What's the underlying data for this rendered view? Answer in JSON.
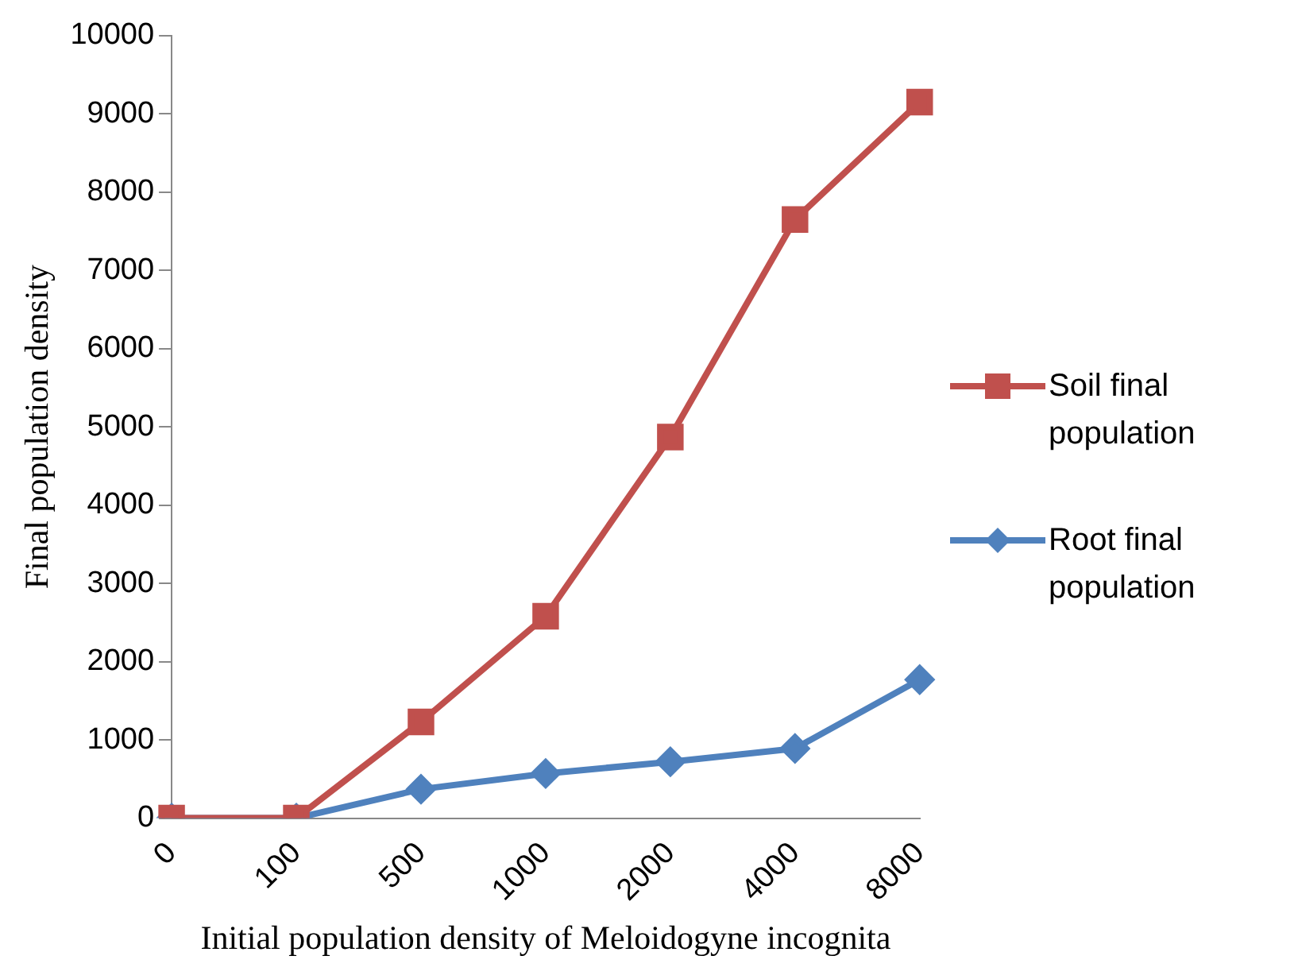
{
  "chart_data": {
    "type": "line",
    "xlabel": "Initial population density of Meloidogyne incognita",
    "ylabel": "Final population density",
    "categories": [
      "0",
      "100",
      "500",
      "1000",
      "2000",
      "4000",
      "8000"
    ],
    "series": [
      {
        "name": "Soil final population",
        "color": "#c0504d",
        "marker": "square",
        "values": [
          0,
          0,
          1230,
          2580,
          4870,
          7650,
          9150
        ]
      },
      {
        "name": "Root final population",
        "color": "#4f81bd",
        "marker": "diamond",
        "values": [
          0,
          0,
          370,
          570,
          720,
          890,
          1770
        ]
      }
    ],
    "ylim": [
      0,
      10000
    ],
    "yticks": [
      0,
      1000,
      2000,
      3000,
      4000,
      5000,
      6000,
      7000,
      8000,
      9000,
      10000
    ],
    "grid": false,
    "legend": "right"
  }
}
